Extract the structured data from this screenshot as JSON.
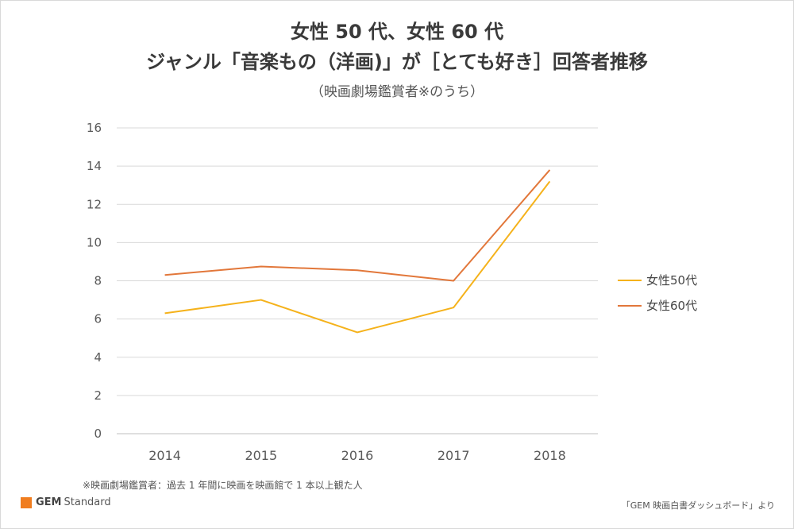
{
  "chart_data": {
    "type": "line",
    "title_line1": "女性 50 代、女性 60 代",
    "title_line2": "ジャンル「音楽もの（洋画)」が［とても好き］回答者推移",
    "subtitle": "（映画劇場鑑賞者※のうち）",
    "x": [
      "2014",
      "2015",
      "2016",
      "2017",
      "2018"
    ],
    "ylim": [
      0,
      16
    ],
    "yticks": [
      0,
      2,
      4,
      6,
      8,
      10,
      12,
      14,
      16
    ],
    "grid": true,
    "legend_position": "right",
    "series": [
      {
        "name": "女性50代",
        "color": "#f5b21b",
        "values": [
          6.3,
          7.0,
          5.3,
          6.6,
          13.2
        ]
      },
      {
        "name": "女性60代",
        "color": "#e2773a",
        "values": [
          8.3,
          8.75,
          8.55,
          8.0,
          13.8
        ]
      }
    ]
  },
  "footnote": "※映画劇場鑑賞者：過去 1 年間に映画を映画館で 1 本以上観た人",
  "logo": {
    "brand": "GEM",
    "suffix": "Standard",
    "color": "#f07d1f"
  },
  "source": "「GEM 映画白書ダッシュボード」より"
}
